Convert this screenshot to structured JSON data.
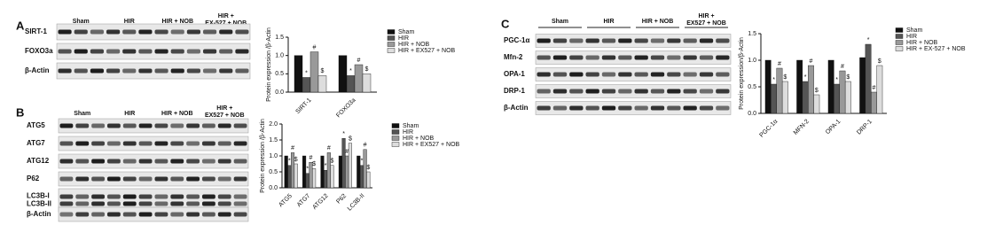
{
  "figure": {
    "panel_labels": [
      "A",
      "B",
      "C"
    ],
    "blots": [
      {
        "groups": [
          [
            "Sham"
          ],
          [
            "HIR"
          ],
          [
            "HIR + NOB"
          ],
          [
            "HIR +",
            "EX-527 + NOB"
          ]
        ],
        "rows": [
          [
            "SIRT-1"
          ],
          [
            "FOXO3a"
          ],
          [
            "β-Actin"
          ]
        ]
      },
      {
        "groups": [
          [
            "Sham"
          ],
          [
            "HIR"
          ],
          [
            "HIR + NOB"
          ],
          [
            "HIR +",
            "EX527 + NOB"
          ]
        ],
        "rows": [
          [
            "ATG5"
          ],
          [
            "ATG7"
          ],
          [
            "ATG12"
          ],
          [
            "P62"
          ],
          [
            "LC3B-I",
            "LC3B-II"
          ],
          [
            "β-Actin"
          ]
        ]
      },
      {
        "groups": [
          [
            "Sham"
          ],
          [
            "HIR"
          ],
          [
            "HIR + NOB"
          ],
          [
            "HIR +",
            "EX527 + NOB"
          ]
        ],
        "rows": [
          [
            "PGC-1α"
          ],
          [
            "Mfn-2"
          ],
          [
            "OPA-1"
          ],
          [
            "DRP-1"
          ],
          [
            "β-Actin"
          ]
        ]
      }
    ]
  },
  "chart_data": [
    {
      "type": "bar",
      "y_label": "Protein expression /β-Actin",
      "categories": [
        "SIRT-1",
        "FOXO3a"
      ],
      "ylim": [
        0,
        1.5
      ],
      "yticks": [
        {
          "value": 0,
          "label": "0.0"
        },
        {
          "value": 0.5,
          "label": "0.5"
        },
        {
          "value": 1,
          "label": "1.0"
        },
        {
          "value": 1.5,
          "label": "1.5"
        }
      ],
      "series": [
        {
          "name": "Sham",
          "color": "#111111",
          "values": [
            1.0,
            1.0
          ]
        },
        {
          "name": "HIR",
          "color": "#555555",
          "annotation": "*",
          "values": [
            0.4,
            0.45
          ]
        },
        {
          "name": "HIR + NOB",
          "color": "#999999",
          "annotation": "#",
          "values": [
            1.1,
            0.75
          ]
        },
        {
          "name": "HIR + EX527 + NOB",
          "color": "#dddddd",
          "annotation": "$",
          "values": [
            0.45,
            0.5
          ]
        }
      ]
    },
    {
      "type": "bar",
      "y_label": "Protein expression /β-Actin",
      "categories": [
        "ATG5",
        "ATG7",
        "ATG12",
        "P62",
        "LC3B-II"
      ],
      "ylim": [
        0,
        2
      ],
      "yticks": [
        {
          "value": 0,
          "label": "0.0"
        },
        {
          "value": 0.5,
          "label": "0.5"
        },
        {
          "value": 1,
          "label": "1.0"
        },
        {
          "value": 1.5,
          "label": "1.5"
        },
        {
          "value": 2,
          "label": "2.0"
        }
      ],
      "series": [
        {
          "name": "Sham",
          "color": "#111111",
          "values": [
            1.0,
            1.0,
            1.0,
            1.0,
            1.0
          ]
        },
        {
          "name": "HIR",
          "color": "#555555",
          "annotation": "*",
          "values": [
            0.7,
            0.45,
            0.55,
            1.55,
            0.7
          ]
        },
        {
          "name": "HIR + NOB",
          "color": "#999999",
          "annotation": "#",
          "values": [
            1.1,
            0.8,
            1.1,
            1.0,
            1.2
          ]
        },
        {
          "name": "HIR + EX527 + NOB",
          "color": "#dddddd",
          "annotation": "$",
          "values": [
            0.75,
            0.6,
            0.7,
            1.4,
            0.5
          ]
        }
      ]
    },
    {
      "type": "bar",
      "y_label": "Protein expression/β-Actin",
      "categories": [
        "PGC-1α",
        "MFN-2",
        "OPA-1",
        "DRP-1"
      ],
      "ylim": [
        0,
        1.5
      ],
      "yticks": [
        {
          "value": 0,
          "label": "0.0"
        },
        {
          "value": 0.5,
          "label": "0.5"
        },
        {
          "value": 1,
          "label": "1.0"
        },
        {
          "value": 1.5,
          "label": "1.5"
        }
      ],
      "series": [
        {
          "name": "Sham",
          "color": "#111111",
          "values": [
            1.0,
            1.0,
            1.0,
            1.05
          ]
        },
        {
          "name": "HIR",
          "color": "#555555",
          "annotation": "*",
          "values": [
            0.55,
            0.6,
            0.55,
            1.3
          ]
        },
        {
          "name": "HIR + NOB",
          "color": "#999999",
          "annotation": "#",
          "values": [
            0.85,
            0.9,
            0.8,
            0.4
          ]
        },
        {
          "name": "HIR + EX-527 + NOB",
          "color": "#dddddd",
          "annotation": "$",
          "values": [
            0.6,
            0.35,
            0.6,
            0.9
          ]
        }
      ]
    }
  ]
}
